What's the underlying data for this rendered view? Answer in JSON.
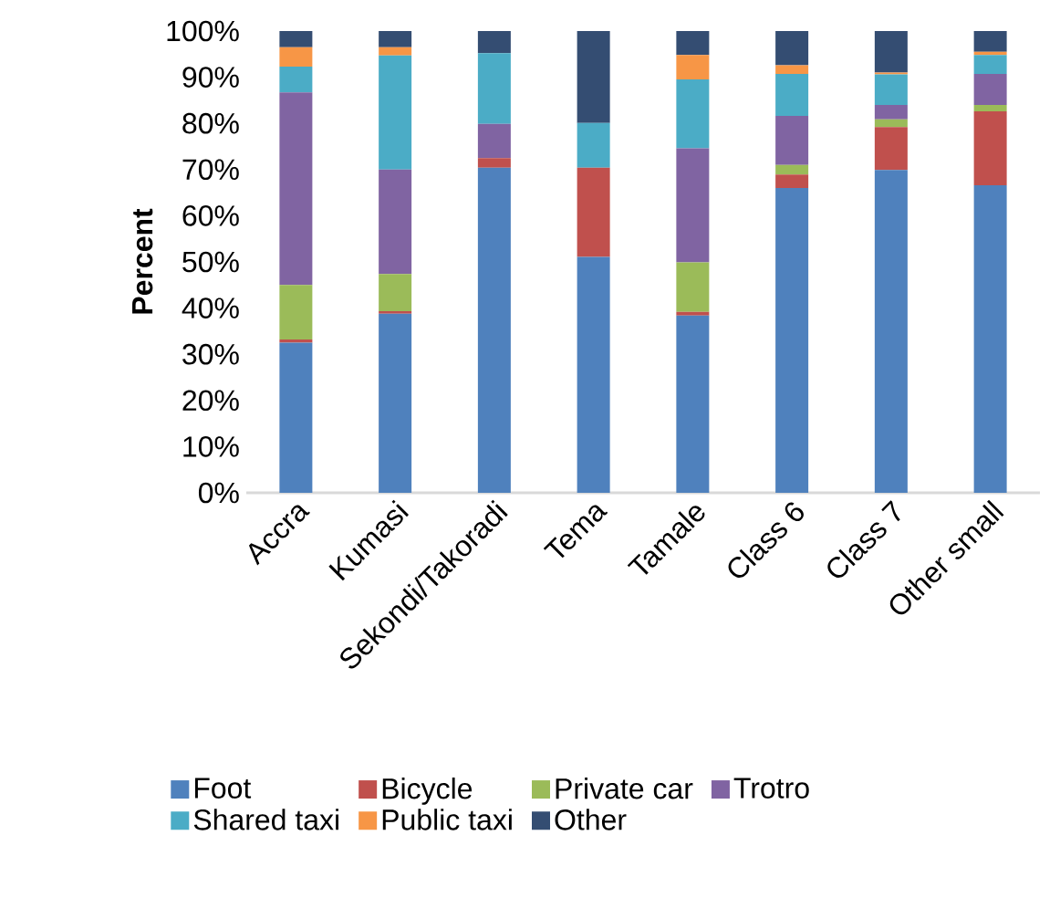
{
  "chart_data": {
    "type": "bar",
    "stacked": true,
    "ylabel": "Percent",
    "legend": "bottom",
    "categories": [
      "Accra",
      "Kumasi",
      "Sekondi/Takoradi",
      "Tema",
      "Tamale",
      "Class 6",
      "Class 7",
      "Other small"
    ],
    "ylim": [
      0,
      100
    ],
    "yticks": [
      {
        "value": 0,
        "label": "0%"
      },
      {
        "value": 10,
        "label": "10%"
      },
      {
        "value": 20,
        "label": "20%"
      },
      {
        "value": 30,
        "label": "30%"
      },
      {
        "value": 40,
        "label": "40%"
      },
      {
        "value": 50,
        "label": "50%"
      },
      {
        "value": 60,
        "label": "60%"
      },
      {
        "value": 70,
        "label": "70%"
      },
      {
        "value": 80,
        "label": "80%"
      },
      {
        "value": 90,
        "label": "90%"
      },
      {
        "value": 100,
        "label": "100%"
      }
    ],
    "series": [
      {
        "name": "Foot",
        "color": "#4f81bd",
        "values": [
          32.5,
          38.8,
          70.4,
          51.1,
          38.4,
          66.0,
          69.9,
          66.6
        ]
      },
      {
        "name": "Bicycle",
        "color": "#c0504d",
        "values": [
          0.7,
          0.5,
          2.1,
          19.3,
          0.8,
          2.9,
          9.3,
          16.0
        ]
      },
      {
        "name": "Private car",
        "color": "#9bbb59",
        "values": [
          11.8,
          8.1,
          0,
          0,
          10.7,
          2.1,
          1.7,
          1.4
        ]
      },
      {
        "name": "Trotro",
        "color": "#8064a2",
        "values": [
          41.7,
          22.6,
          7.4,
          0,
          24.7,
          10.6,
          3.1,
          6.7
        ]
      },
      {
        "name": "Shared taxi",
        "color": "#4bacc6",
        "values": [
          5.6,
          24.7,
          15.3,
          9.7,
          14.9,
          9.1,
          6.6,
          4.1
        ]
      },
      {
        "name": "Public taxi",
        "color": "#f79646",
        "values": [
          4.2,
          1.8,
          0,
          0,
          5.3,
          1.9,
          0.4,
          0.7
        ]
      },
      {
        "name": "Other",
        "color": "#344d72",
        "values": [
          3.5,
          3.5,
          4.8,
          19.9,
          5.2,
          7.4,
          9.0,
          4.5
        ]
      }
    ]
  }
}
